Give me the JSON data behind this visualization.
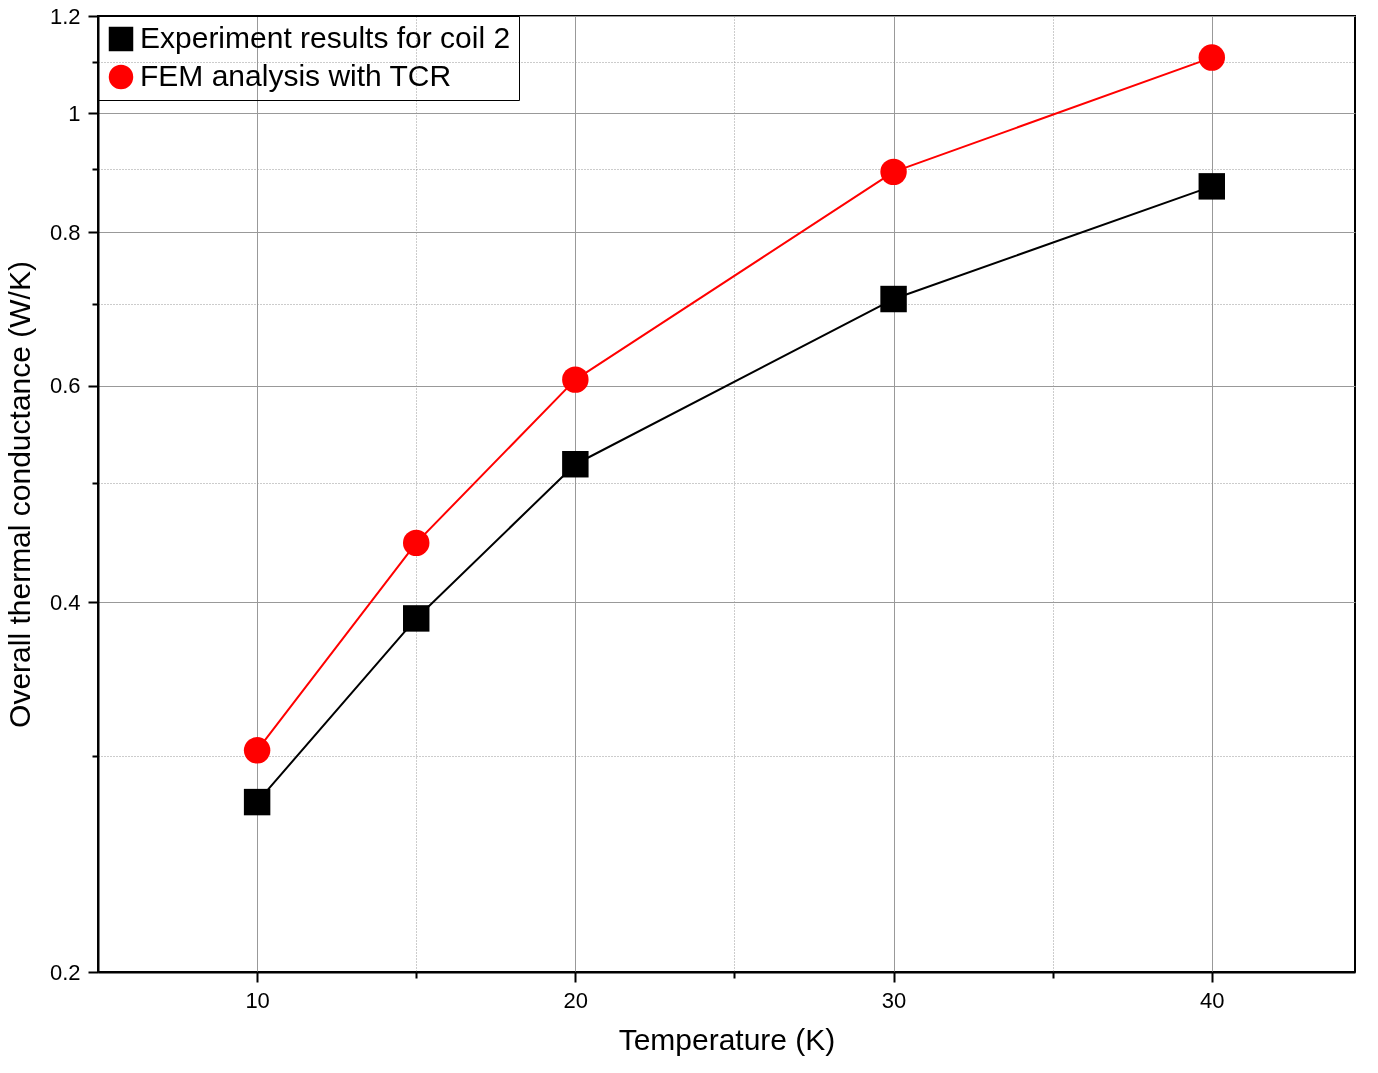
{
  "chart_data": {
    "type": "line",
    "xlabel": "Temperature (K)",
    "ylabel": "Overall thermal conductance (W/K)",
    "x": [
      10,
      15,
      20,
      30,
      40
    ],
    "series": [
      {
        "name": "Experiment results for coil 2",
        "color": "#000000",
        "marker": "square",
        "values": [
          0.275,
          0.388,
          0.518,
          0.706,
          0.872
        ]
      },
      {
        "name": "FEM analysis with TCR",
        "color": "#ff0000",
        "marker": "circle",
        "values": [
          0.303,
          0.447,
          0.607,
          0.896,
          1.11
        ]
      }
    ],
    "log": "y",
    "xlim": [
      5,
      44.5
    ],
    "ylim": [
      0.2,
      1.2
    ],
    "xticks": [
      10,
      {
        "value": 15,
        "label": null
      },
      20,
      {
        "value": 25,
        "label": null
      },
      30,
      {
        "value": 35,
        "label": null
      },
      40
    ],
    "yticks": [
      0.2,
      {
        "value": 0.3,
        "label": null
      },
      0.4,
      {
        "value": 0.5,
        "label": null
      },
      0.6,
      {
        "value": 0.7,
        "label": null
      },
      0.8,
      {
        "value": 0.9,
        "label": null
      },
      1,
      {
        "value": 1.1,
        "label": null
      },
      1.2
    ],
    "grid": true,
    "legend": "top left",
    "line_style": "solid"
  }
}
